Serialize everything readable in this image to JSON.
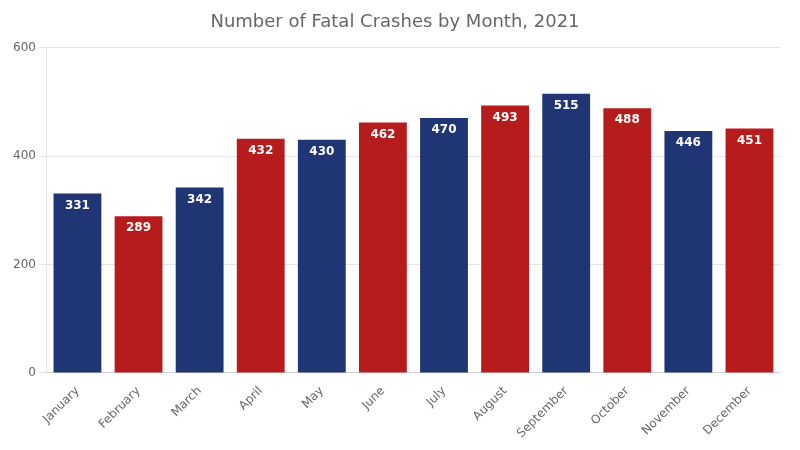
{
  "chart_data": {
    "type": "bar",
    "title": "Number of Fatal Crashes by Month, 2021",
    "categories": [
      "January",
      "February",
      "March",
      "April",
      "May",
      "June",
      "July",
      "August",
      "September",
      "October",
      "November",
      "December"
    ],
    "values": [
      331,
      289,
      342,
      432,
      430,
      462,
      470,
      493,
      515,
      488,
      446,
      451
    ],
    "colors": [
      "#1f3574",
      "#b71c1c",
      "#1f3574",
      "#b71c1c",
      "#1f3574",
      "#b71c1c",
      "#1f3574",
      "#b71c1c",
      "#1f3574",
      "#b71c1c",
      "#1f3574",
      "#b71c1c"
    ],
    "ylim": [
      0,
      600
    ],
    "yticks": [
      0,
      200,
      400,
      600
    ],
    "grid": true,
    "data_labels": true
  }
}
